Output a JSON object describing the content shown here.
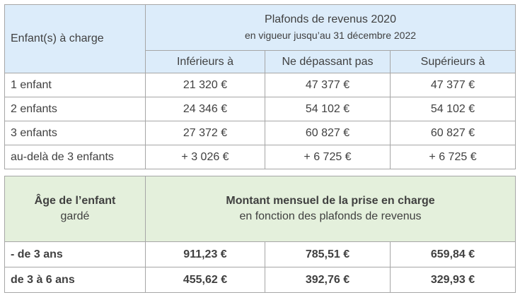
{
  "table1": {
    "header_left": "Enfant(s) à charge",
    "header_title": "Plafonds de revenus 2020",
    "header_subtitle": "en vigueur jusqu’au 31 décembre 2022",
    "columns": [
      "Inférieurs à",
      "Ne dépassant pas",
      "Supérieurs à"
    ],
    "rows": [
      {
        "label": "1 enfant",
        "values": [
          "21 320 €",
          "47 377 €",
          "47 377 €"
        ]
      },
      {
        "label": "2 enfants",
        "values": [
          "24 346 €",
          "54 102 €",
          "54 102 €"
        ]
      },
      {
        "label": "3 enfants",
        "values": [
          "27 372 €",
          "60 827 €",
          "60 827 €"
        ]
      },
      {
        "label": "au-delà de 3 enfants",
        "values": [
          "+ 3 026 €",
          "+ 6 725 €",
          "+ 6 725 €"
        ]
      }
    ]
  },
  "table2": {
    "header_left_line1": "Âge de l’enfant",
    "header_left_line2": "gardé",
    "header_title": "Montant mensuel de la prise en charge",
    "header_subtitle": "en fonction des plafonds de revenus",
    "rows": [
      {
        "label": "- de 3 ans",
        "values": [
          "911,23 €",
          "785,51 €",
          "659,84 €"
        ]
      },
      {
        "label": "de 3 à 6 ans",
        "values": [
          "455,62 €",
          "392,76 €",
          "329,93 €"
        ]
      }
    ]
  },
  "colors": {
    "header_blue": "#dcecfa",
    "header_green": "#e4f0dc",
    "border": "#a6a6a6"
  }
}
